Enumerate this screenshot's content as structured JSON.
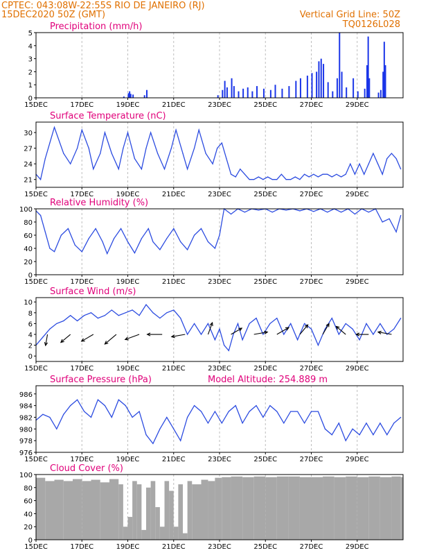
{
  "header": {
    "line1": "CPTEC:   043:08W-22:55S  RIO DE JANEIRO (RJ)",
    "line2": "15DEC2020 50Z (GMT)",
    "grid_note": "Vertical Grid Line: 50Z",
    "model_id": "TQ0126L028"
  },
  "colors": {
    "header": "#e07000",
    "title": "#e0007a",
    "line": "#2b4be0",
    "bar": "#1a35e8",
    "cloud": "#a8a8a8"
  },
  "x_tick_labels": [
    "15DEC",
    "17DEC",
    "19DEC",
    "21DEC",
    "23DEC",
    "25DEC",
    "27DEC",
    "29DEC"
  ],
  "x_tick_days": [
    0,
    2,
    4,
    6,
    8,
    10,
    12,
    14
  ],
  "chart_data": [
    {
      "type": "bar",
      "title": "Precipitation (mm/h)",
      "ylim": [
        0,
        5
      ],
      "yticks": [
        0,
        1,
        2,
        3,
        4,
        5
      ],
      "points": [
        [
          3.8,
          0.1
        ],
        [
          4.0,
          0.35
        ],
        [
          4.05,
          0.5
        ],
        [
          4.1,
          0.3
        ],
        [
          4.2,
          0.25
        ],
        [
          4.7,
          0.2
        ],
        [
          4.8,
          0.6
        ],
        [
          7.9,
          0.2
        ],
        [
          8.1,
          0.6
        ],
        [
          8.2,
          1.3
        ],
        [
          8.3,
          0.8
        ],
        [
          8.5,
          1.5
        ],
        [
          8.6,
          0.9
        ],
        [
          8.8,
          0.5
        ],
        [
          9.0,
          0.7
        ],
        [
          9.2,
          0.8
        ],
        [
          9.4,
          0.5
        ],
        [
          9.6,
          0.9
        ],
        [
          9.9,
          0.7
        ],
        [
          10.2,
          0.6
        ],
        [
          10.4,
          1.0
        ],
        [
          10.7,
          0.7
        ],
        [
          11.0,
          0.9
        ],
        [
          11.3,
          1.3
        ],
        [
          11.5,
          1.5
        ],
        [
          11.8,
          1.7
        ],
        [
          12.0,
          1.9
        ],
        [
          12.2,
          2.0
        ],
        [
          12.3,
          2.8
        ],
        [
          12.4,
          3.0
        ],
        [
          12.5,
          2.6
        ],
        [
          12.7,
          1.2
        ],
        [
          12.9,
          0.5
        ],
        [
          13.1,
          1.5
        ],
        [
          13.2,
          5.0
        ],
        [
          13.3,
          2.0
        ],
        [
          13.5,
          0.8
        ],
        [
          13.8,
          1.5
        ],
        [
          14.0,
          0.5
        ],
        [
          14.3,
          0.7
        ],
        [
          14.4,
          2.5
        ],
        [
          14.45,
          4.7
        ],
        [
          14.5,
          1.5
        ],
        [
          14.9,
          0.4
        ],
        [
          15.0,
          0.6
        ],
        [
          15.1,
          2.0
        ],
        [
          15.15,
          4.3
        ],
        [
          15.2,
          2.5
        ]
      ]
    },
    {
      "type": "line",
      "title": "Surface Temperature (nC)",
      "ylim": [
        19.5,
        32
      ],
      "yticks": [
        21,
        24,
        27,
        30
      ],
      "points": [
        [
          0,
          22
        ],
        [
          0.2,
          21
        ],
        [
          0.4,
          25
        ],
        [
          0.6,
          28
        ],
        [
          0.8,
          31
        ],
        [
          1.2,
          26
        ],
        [
          1.5,
          24
        ],
        [
          1.8,
          27
        ],
        [
          2.0,
          30.5
        ],
        [
          2.3,
          27
        ],
        [
          2.5,
          23
        ],
        [
          2.8,
          26
        ],
        [
          3.0,
          30
        ],
        [
          3.3,
          26
        ],
        [
          3.6,
          23
        ],
        [
          3.8,
          27
        ],
        [
          4.0,
          30
        ],
        [
          4.3,
          25
        ],
        [
          4.6,
          23
        ],
        [
          4.8,
          27
        ],
        [
          5.0,
          30
        ],
        [
          5.3,
          26
        ],
        [
          5.6,
          23
        ],
        [
          5.9,
          27
        ],
        [
          6.1,
          30.5
        ],
        [
          6.4,
          26
        ],
        [
          6.6,
          23
        ],
        [
          6.9,
          27
        ],
        [
          7.1,
          30.5
        ],
        [
          7.4,
          26
        ],
        [
          7.7,
          24
        ],
        [
          7.9,
          27
        ],
        [
          8.1,
          28
        ],
        [
          8.3,
          25
        ],
        [
          8.5,
          22
        ],
        [
          8.7,
          21.5
        ],
        [
          8.9,
          23
        ],
        [
          9.1,
          22
        ],
        [
          9.3,
          21
        ],
        [
          9.5,
          21
        ],
        [
          9.7,
          21.5
        ],
        [
          9.9,
          21
        ],
        [
          10.1,
          21.5
        ],
        [
          10.3,
          21
        ],
        [
          10.5,
          21
        ],
        [
          10.7,
          22
        ],
        [
          10.9,
          21
        ],
        [
          11.1,
          21
        ],
        [
          11.3,
          21.5
        ],
        [
          11.5,
          21
        ],
        [
          11.7,
          22
        ],
        [
          11.9,
          21.5
        ],
        [
          12.1,
          22
        ],
        [
          12.3,
          21.5
        ],
        [
          12.5,
          22
        ],
        [
          12.7,
          22
        ],
        [
          12.9,
          21.5
        ],
        [
          13.1,
          22
        ],
        [
          13.3,
          21.5
        ],
        [
          13.5,
          22
        ],
        [
          13.7,
          24
        ],
        [
          13.9,
          22
        ],
        [
          14.1,
          24
        ],
        [
          14.3,
          22
        ],
        [
          14.5,
          24
        ],
        [
          14.7,
          26
        ],
        [
          14.9,
          24
        ],
        [
          15.1,
          22
        ],
        [
          15.3,
          25
        ],
        [
          15.5,
          26
        ],
        [
          15.7,
          25
        ],
        [
          15.9,
          23
        ]
      ]
    },
    {
      "type": "line",
      "title": "Relative Humidity (%)",
      "ylim": [
        0,
        100
      ],
      "yticks": [
        0,
        20,
        40,
        60,
        80,
        100
      ],
      "points": [
        [
          0,
          97
        ],
        [
          0.2,
          90
        ],
        [
          0.4,
          65
        ],
        [
          0.6,
          40
        ],
        [
          0.8,
          35
        ],
        [
          1.1,
          60
        ],
        [
          1.4,
          70
        ],
        [
          1.7,
          45
        ],
        [
          2.0,
          35
        ],
        [
          2.3,
          55
        ],
        [
          2.6,
          70
        ],
        [
          2.9,
          50
        ],
        [
          3.1,
          32
        ],
        [
          3.4,
          55
        ],
        [
          3.7,
          70
        ],
        [
          4.0,
          50
        ],
        [
          4.3,
          33
        ],
        [
          4.6,
          55
        ],
        [
          4.9,
          70
        ],
        [
          5.1,
          50
        ],
        [
          5.4,
          38
        ],
        [
          5.7,
          55
        ],
        [
          6.0,
          70
        ],
        [
          6.3,
          50
        ],
        [
          6.6,
          38
        ],
        [
          6.9,
          60
        ],
        [
          7.2,
          70
        ],
        [
          7.5,
          50
        ],
        [
          7.8,
          40
        ],
        [
          8.0,
          60
        ],
        [
          8.2,
          100
        ],
        [
          8.5,
          92
        ],
        [
          8.8,
          100
        ],
        [
          9.1,
          95
        ],
        [
          9.4,
          100
        ],
        [
          9.7,
          98
        ],
        [
          10.0,
          100
        ],
        [
          10.3,
          95
        ],
        [
          10.6,
          100
        ],
        [
          10.9,
          98
        ],
        [
          11.2,
          100
        ],
        [
          11.5,
          97
        ],
        [
          11.8,
          100
        ],
        [
          12.1,
          96
        ],
        [
          12.4,
          100
        ],
        [
          12.7,
          95
        ],
        [
          13.0,
          100
        ],
        [
          13.3,
          95
        ],
        [
          13.6,
          100
        ],
        [
          13.9,
          92
        ],
        [
          14.2,
          100
        ],
        [
          14.5,
          95
        ],
        [
          14.8,
          100
        ],
        [
          15.1,
          80
        ],
        [
          15.4,
          85
        ],
        [
          15.7,
          65
        ],
        [
          15.9,
          90
        ]
      ]
    },
    {
      "type": "line",
      "title": "Surface Wind (m/s)",
      "ylim": [
        -1,
        10.8
      ],
      "yticks": [
        0,
        2,
        4,
        6,
        8,
        10
      ],
      "points": [
        [
          0,
          2
        ],
        [
          0.3,
          3.5
        ],
        [
          0.6,
          5
        ],
        [
          0.9,
          6
        ],
        [
          1.2,
          6.5
        ],
        [
          1.5,
          7.5
        ],
        [
          1.8,
          6.5
        ],
        [
          2.1,
          7.5
        ],
        [
          2.4,
          8
        ],
        [
          2.7,
          7
        ],
        [
          3.0,
          7.5
        ],
        [
          3.3,
          8.5
        ],
        [
          3.6,
          7.5
        ],
        [
          3.9,
          8
        ],
        [
          4.2,
          8.5
        ],
        [
          4.5,
          7.5
        ],
        [
          4.8,
          9.5
        ],
        [
          5.1,
          8
        ],
        [
          5.4,
          7
        ],
        [
          5.7,
          8
        ],
        [
          6.0,
          8.5
        ],
        [
          6.3,
          7
        ],
        [
          6.6,
          4
        ],
        [
          6.9,
          6
        ],
        [
          7.2,
          4
        ],
        [
          7.5,
          6
        ],
        [
          7.8,
          3
        ],
        [
          8.0,
          5
        ],
        [
          8.2,
          2
        ],
        [
          8.4,
          1
        ],
        [
          8.6,
          4
        ],
        [
          8.8,
          6
        ],
        [
          9.0,
          3
        ],
        [
          9.3,
          6
        ],
        [
          9.6,
          7
        ],
        [
          9.9,
          4
        ],
        [
          10.2,
          6
        ],
        [
          10.5,
          7
        ],
        [
          10.8,
          4
        ],
        [
          11.1,
          6
        ],
        [
          11.4,
          3
        ],
        [
          11.7,
          6
        ],
        [
          12.0,
          5
        ],
        [
          12.3,
          2
        ],
        [
          12.6,
          5
        ],
        [
          12.9,
          7
        ],
        [
          13.2,
          4
        ],
        [
          13.5,
          6
        ],
        [
          13.8,
          5
        ],
        [
          14.1,
          3
        ],
        [
          14.4,
          6
        ],
        [
          14.7,
          4
        ],
        [
          15.0,
          6
        ],
        [
          15.3,
          4
        ],
        [
          15.6,
          5
        ],
        [
          15.9,
          7
        ]
      ],
      "arrows": [
        [
          0.5,
          -170,
          1.8
        ],
        [
          1.5,
          -130,
          2.0
        ],
        [
          2.5,
          -120,
          2.2
        ],
        [
          3.5,
          -130,
          2.4
        ],
        [
          4.5,
          -110,
          2.4
        ],
        [
          5.5,
          -90,
          2.4
        ],
        [
          6.5,
          -100,
          2.2
        ],
        [
          7.5,
          20,
          2.0
        ],
        [
          8.5,
          60,
          2.0
        ],
        [
          9.5,
          80,
          2.2
        ],
        [
          10.5,
          60,
          2.2
        ],
        [
          11.5,
          40,
          2.0
        ],
        [
          12.5,
          30,
          2.0
        ],
        [
          13.5,
          -50,
          2.0
        ],
        [
          14.5,
          -90,
          2.0
        ],
        [
          15.5,
          -80,
          2.2
        ]
      ]
    },
    {
      "type": "line",
      "title": "Surface Pressure (hPa)",
      "annotation": "Model Altitude: 254.889  m",
      "ylim": [
        976,
        987.4
      ],
      "yticks": [
        976,
        978,
        980,
        982,
        984,
        986
      ],
      "points": [
        [
          0,
          981.5
        ],
        [
          0.3,
          982.5
        ],
        [
          0.6,
          982
        ],
        [
          0.9,
          980
        ],
        [
          1.2,
          982.5
        ],
        [
          1.5,
          984
        ],
        [
          1.8,
          985
        ],
        [
          2.1,
          983
        ],
        [
          2.4,
          982
        ],
        [
          2.7,
          985
        ],
        [
          3.0,
          984
        ],
        [
          3.3,
          982
        ],
        [
          3.6,
          985
        ],
        [
          3.9,
          984
        ],
        [
          4.2,
          982
        ],
        [
          4.5,
          983
        ],
        [
          4.8,
          979
        ],
        [
          5.1,
          977.5
        ],
        [
          5.4,
          980
        ],
        [
          5.7,
          982
        ],
        [
          6.0,
          980
        ],
        [
          6.3,
          978
        ],
        [
          6.6,
          982
        ],
        [
          6.9,
          984
        ],
        [
          7.2,
          983
        ],
        [
          7.5,
          981
        ],
        [
          7.8,
          983
        ],
        [
          8.1,
          981
        ],
        [
          8.4,
          983
        ],
        [
          8.7,
          984
        ],
        [
          9.0,
          981
        ],
        [
          9.3,
          983
        ],
        [
          9.6,
          984
        ],
        [
          9.9,
          982
        ],
        [
          10.2,
          984
        ],
        [
          10.5,
          983
        ],
        [
          10.8,
          981
        ],
        [
          11.1,
          983
        ],
        [
          11.4,
          983
        ],
        [
          11.7,
          981
        ],
        [
          12.0,
          983
        ],
        [
          12.3,
          983
        ],
        [
          12.6,
          980
        ],
        [
          12.9,
          979
        ],
        [
          13.2,
          981
        ],
        [
          13.5,
          978
        ],
        [
          13.8,
          980
        ],
        [
          14.1,
          979
        ],
        [
          14.4,
          981
        ],
        [
          14.7,
          979
        ],
        [
          15.0,
          981
        ],
        [
          15.3,
          979
        ],
        [
          15.6,
          981
        ],
        [
          15.9,
          982
        ]
      ]
    },
    {
      "type": "bar",
      "title": "Cloud Cover (%)",
      "ylim": [
        0,
        100
      ],
      "yticks": [
        0,
        20,
        40,
        60,
        80,
        100
      ],
      "points": [
        [
          0,
          95
        ],
        [
          0.4,
          90
        ],
        [
          0.8,
          92
        ],
        [
          1.2,
          90
        ],
        [
          1.6,
          93
        ],
        [
          2.0,
          90
        ],
        [
          2.4,
          92
        ],
        [
          2.8,
          88
        ],
        [
          3.2,
          93
        ],
        [
          3.6,
          85
        ],
        [
          3.8,
          20
        ],
        [
          4.0,
          35
        ],
        [
          4.2,
          90
        ],
        [
          4.4,
          85
        ],
        [
          4.6,
          15
        ],
        [
          4.8,
          80
        ],
        [
          5.0,
          90
        ],
        [
          5.2,
          50
        ],
        [
          5.4,
          20
        ],
        [
          5.6,
          90
        ],
        [
          5.8,
          75
        ],
        [
          6.0,
          20
        ],
        [
          6.2,
          85
        ],
        [
          6.4,
          10
        ],
        [
          6.6,
          90
        ],
        [
          6.8,
          85
        ],
        [
          7.2,
          92
        ],
        [
          7.5,
          90
        ],
        [
          7.8,
          95
        ],
        [
          8.1,
          96
        ],
        [
          8.5,
          97
        ],
        [
          9.0,
          96
        ],
        [
          9.5,
          97
        ],
        [
          10.0,
          96
        ],
        [
          10.5,
          97
        ],
        [
          11.0,
          97
        ],
        [
          11.5,
          96
        ],
        [
          12.0,
          96
        ],
        [
          12.5,
          97
        ],
        [
          13.0,
          96
        ],
        [
          13.5,
          97
        ],
        [
          14.0,
          96
        ],
        [
          14.5,
          97
        ],
        [
          15.0,
          96
        ],
        [
          15.5,
          97
        ],
        [
          15.9,
          96
        ]
      ]
    }
  ]
}
